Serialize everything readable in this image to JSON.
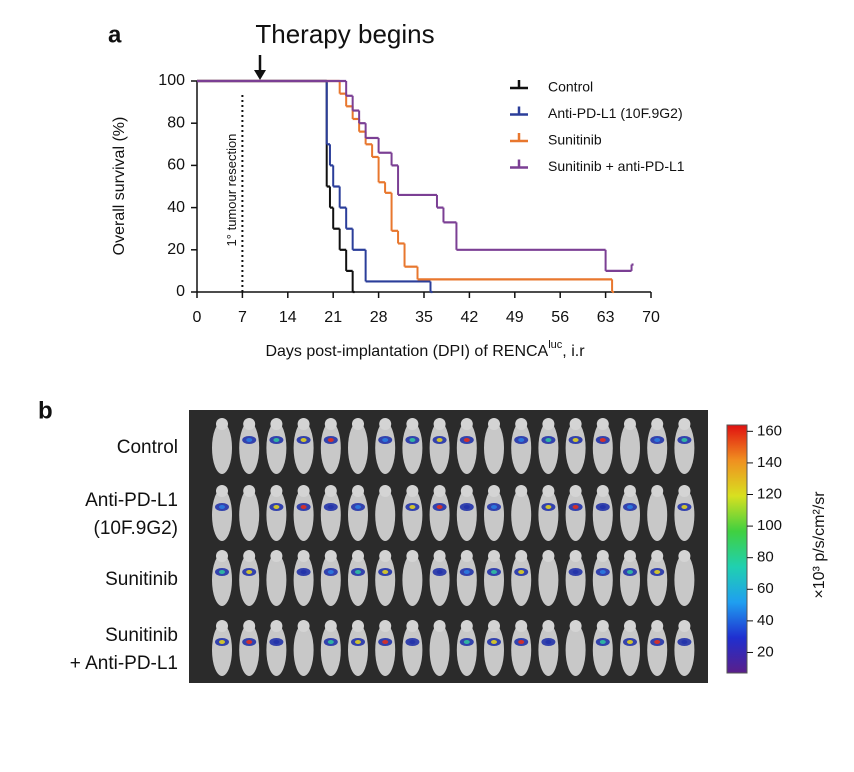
{
  "chart_data": {
    "type": "line",
    "step": true,
    "panel_label": "a",
    "annotations": [
      "Therapy begins",
      "1° tumour resection"
    ],
    "x_label": [
      "Days post-implantation (DPI) of RENCA",
      "luc",
      ", i.r"
    ],
    "y_label": "Overall survival (%)",
    "xlim": [
      0,
      70
    ],
    "xticks": [
      0,
      7,
      14,
      21,
      28,
      35,
      42,
      49,
      56,
      63,
      70
    ],
    "ylim": [
      0,
      100
    ],
    "yticks": [
      0,
      20,
      40,
      60,
      80,
      100
    ],
    "series": [
      {
        "name": "Control",
        "color": "#111111",
        "x": [
          0,
          20,
          20.5,
          21,
          22,
          23,
          24
        ],
        "values": [
          100,
          50,
          40,
          30,
          20,
          10,
          0
        ]
      },
      {
        "name": "Anti-PD-L1 (10F.9G2)",
        "color": "#2b3e9a",
        "x": [
          0,
          20,
          20.5,
          21,
          22,
          23,
          24,
          26,
          36
        ],
        "values": [
          100,
          70,
          60,
          50,
          40,
          30,
          20,
          5,
          0
        ]
      },
      {
        "name": "Sunitinib",
        "color": "#e8772e",
        "x": [
          0,
          22,
          23,
          24,
          25,
          26,
          27,
          28,
          29,
          30,
          31,
          32,
          34,
          64
        ],
        "values": [
          100,
          94,
          88,
          82,
          76,
          70,
          64,
          52,
          47,
          29,
          23,
          12,
          6,
          0
        ]
      },
      {
        "name": "Sunitinib + anti-PD-L1",
        "color": "#7b3f94",
        "x": [
          0,
          23,
          24,
          25,
          26,
          28,
          30,
          31,
          37,
          38,
          40,
          63,
          67
        ],
        "values": [
          100,
          93,
          86,
          80,
          73,
          66,
          60,
          46,
          40,
          33,
          20,
          10,
          13
        ]
      }
    ]
  },
  "panel_b": {
    "panel_label": "b",
    "groups": [
      {
        "lines": [
          "Control"
        ],
        "color": "#111111"
      },
      {
        "lines": [
          "Anti-PD-L1",
          "(10F.9G2)"
        ],
        "color": "#2b3e9a"
      },
      {
        "lines": [
          "Sunitinib"
        ],
        "color": "#e8772e"
      },
      {
        "lines": [
          "Sunitinib",
          "+ Anti-PD-L1"
        ],
        "color": "#7b3f94"
      }
    ],
    "colorbar": {
      "clim": [
        7,
        164
      ],
      "ticks": [
        20,
        40,
        60,
        80,
        100,
        120,
        140,
        160
      ],
      "label": "×10³ p/s/cm²/sr"
    }
  }
}
